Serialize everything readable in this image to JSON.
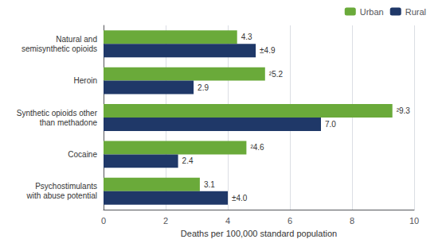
{
  "chart_data": {
    "type": "bar",
    "orientation": "horizontal",
    "categories": [
      "Natural and\nsemisynthetic opioids",
      "Heroin",
      "Synthetic opioids other\nthan methadone",
      "Cocaine",
      "Psychostimulants\nwith abuse potential"
    ],
    "series": [
      {
        "name": "Urban",
        "color": "#6aaa3a",
        "values": [
          4.3,
          5.2,
          9.3,
          4.6,
          3.1
        ],
        "value_labels": [
          "4.3",
          "²5.2",
          "²9.3",
          "²4.6",
          "3.1"
        ]
      },
      {
        "name": "Rural",
        "color": "#1f3868",
        "values": [
          4.9,
          2.9,
          7.0,
          2.4,
          4.0
        ],
        "value_labels": [
          "±4.9",
          "2.9",
          "7.0",
          "2.4",
          "±4.0"
        ]
      }
    ],
    "xlabel": "Deaths per 100,000 standard population",
    "xlim": [
      0,
      10
    ],
    "xticks": [
      0,
      2,
      4,
      6,
      8,
      10
    ],
    "grid": true,
    "legend": "upper right",
    "data_labels": true
  }
}
